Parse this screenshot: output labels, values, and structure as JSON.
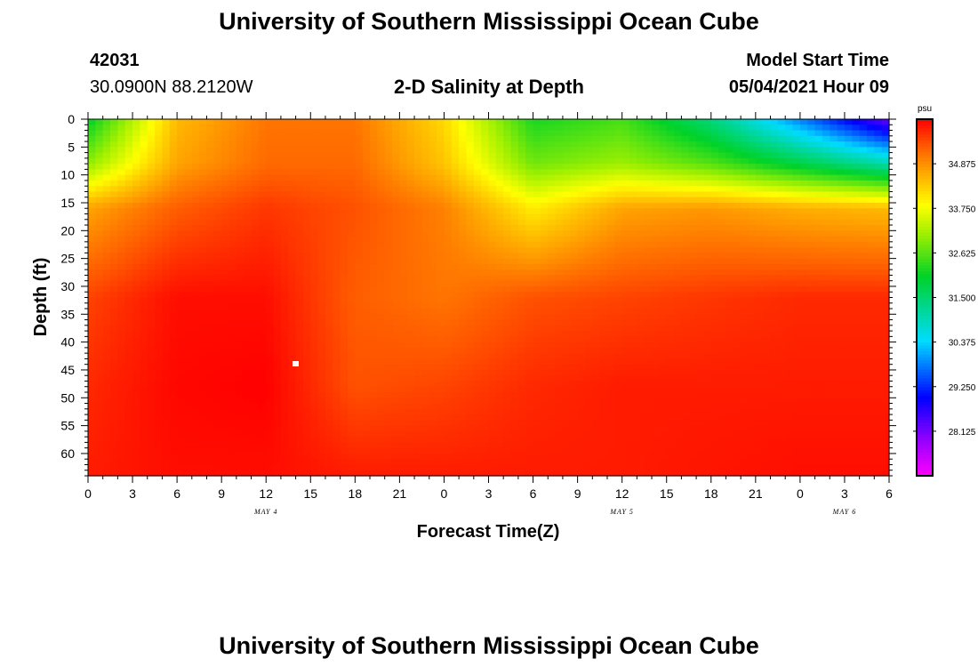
{
  "page": {
    "title_top": "University of Southern Mississippi Ocean Cube",
    "title_bottom": "University of Southern Mississippi Ocean Cube",
    "station_id": "42031",
    "location": "30.0900N  88.2120W",
    "plot_title": "2-D Salinity at Depth",
    "model_start_label": "Model Start Time",
    "model_start_value": "05/04/2021 Hour 09"
  },
  "chart_data": {
    "type": "heatmap",
    "title": "2-D Salinity at Depth",
    "xlabel": "Forecast Time(Z)",
    "ylabel": "Depth (ft)",
    "x_tick_labels": [
      "0",
      "3",
      "6",
      "9",
      "12",
      "15",
      "18",
      "21",
      "0",
      "3",
      "6",
      "9",
      "12",
      "15",
      "18",
      "21",
      "0",
      "3",
      "6"
    ],
    "x_hours": [
      0,
      3,
      6,
      9,
      12,
      15,
      18,
      21,
      24,
      27,
      30,
      33,
      36,
      39,
      42,
      45,
      48,
      51,
      54
    ],
    "x_range_hours": [
      0,
      54
    ],
    "date_labels": [
      {
        "text": "MAY 4",
        "hour": 12
      },
      {
        "text": "MAY 5",
        "hour": 36
      },
      {
        "text": "MAY 6",
        "hour": 51
      }
    ],
    "y_ticks": [
      0,
      5,
      10,
      15,
      20,
      25,
      30,
      35,
      40,
      45,
      50,
      55,
      60
    ],
    "y_range": [
      0,
      64
    ],
    "colorbar": {
      "unit": "psu",
      "range": [
        27.0,
        36.0
      ],
      "tick_values": [
        34.875,
        33.75,
        32.625,
        31.5,
        30.375,
        29.25,
        28.125
      ],
      "tick_labels": [
        "34.875",
        "33.750",
        "32.625",
        "31.500",
        "30.375",
        "29.250",
        "28.125"
      ]
    },
    "grid": {
      "hours": [
        0,
        6,
        12,
        18,
        24,
        30,
        36,
        42,
        48,
        54
      ],
      "depths": [
        0,
        8,
        16,
        32,
        48,
        64
      ],
      "values": [
        [
          32.0,
          34.5,
          35.1,
          35.1,
          34.2,
          32.2,
          32.5,
          31.4,
          29.8,
          28.2
        ],
        [
          33.0,
          34.7,
          35.2,
          35.2,
          34.4,
          32.8,
          33.1,
          32.6,
          31.8,
          31.0
        ],
        [
          34.7,
          35.3,
          35.6,
          35.4,
          35.0,
          34.0,
          34.7,
          34.8,
          34.6,
          34.5
        ],
        [
          35.5,
          35.9,
          35.9,
          35.3,
          35.1,
          35.4,
          35.5,
          35.6,
          35.7,
          35.7
        ],
        [
          35.7,
          35.95,
          36.0,
          35.4,
          35.5,
          35.7,
          35.8,
          35.8,
          35.8,
          35.8
        ],
        [
          35.8,
          35.9,
          35.9,
          35.8,
          35.8,
          35.8,
          35.8,
          35.85,
          35.9,
          35.9
        ]
      ]
    }
  }
}
